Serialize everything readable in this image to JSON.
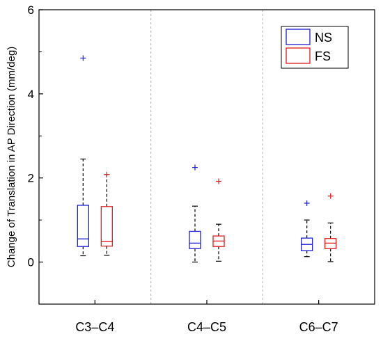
{
  "chart_data": {
    "type": "box",
    "title": "",
    "xlabel": "",
    "ylabel": "Change of Translation in AP Direction (mm/deg)",
    "ylim": [
      -1,
      6
    ],
    "yticks": [
      0,
      2,
      4,
      6
    ],
    "ytick_labels": [
      "0",
      "2",
      "4",
      "6"
    ],
    "categories": [
      "C3–C4",
      "C4–C5",
      "C6–C7"
    ],
    "legend_position": "top-right",
    "grid": false,
    "category_separators": "dashed-vertical",
    "series": [
      {
        "name": "NS",
        "color": "#1f1fd6",
        "boxes": [
          {
            "category": "C3–C4",
            "min": 0.15,
            "q1": 0.37,
            "median": 0.55,
            "q3": 1.35,
            "max": 2.45,
            "outliers": [
              4.85
            ]
          },
          {
            "category": "C4–C5",
            "min": 0.0,
            "q1": 0.32,
            "median": 0.45,
            "q3": 0.73,
            "max": 1.33,
            "outliers": [
              2.25
            ]
          },
          {
            "category": "C6–C7",
            "min": 0.13,
            "q1": 0.27,
            "median": 0.42,
            "q3": 0.57,
            "max": 1.0,
            "outliers": [
              1.4
            ]
          }
        ]
      },
      {
        "name": "FS",
        "color": "#e31a1c",
        "boxes": [
          {
            "category": "C3–C4",
            "min": 0.16,
            "q1": 0.38,
            "median": 0.49,
            "q3": 1.32,
            "max": 2.08,
            "outliers": [
              2.08
            ]
          },
          {
            "category": "C4–C5",
            "min": 0.02,
            "q1": 0.37,
            "median": 0.5,
            "q3": 0.62,
            "max": 0.9,
            "outliers": [
              1.92
            ]
          },
          {
            "category": "C6–C7",
            "min": 0.01,
            "q1": 0.32,
            "median": 0.45,
            "q3": 0.56,
            "max": 0.93,
            "outliers": [
              1.57
            ]
          }
        ]
      }
    ]
  }
}
